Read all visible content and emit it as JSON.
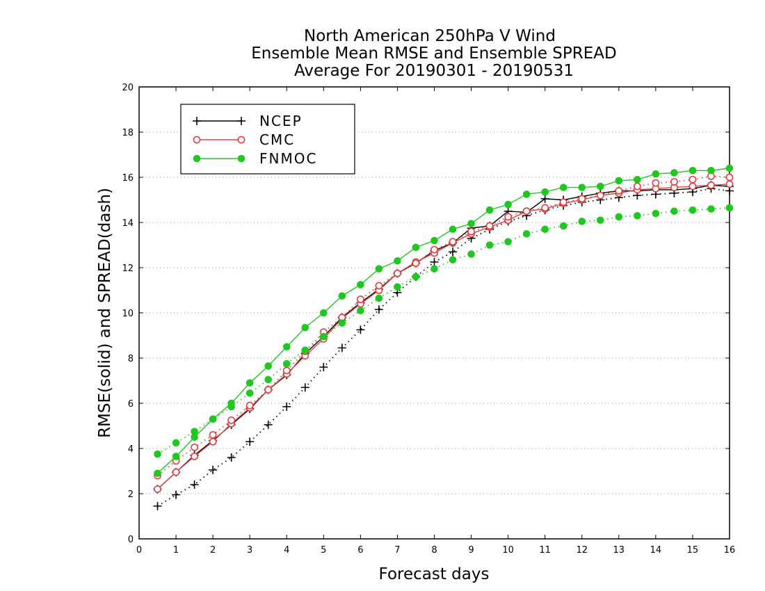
{
  "chart_data": {
    "type": "line",
    "title": [
      "North American 250hPa V Wind",
      "Ensemble Mean RMSE and Ensemble SPREAD",
      "Average For 20190301 - 20190531"
    ],
    "xlabel": "Forecast days",
    "ylabel": "RMSE(solid) and SPREAD(dash)",
    "xlim": [
      0,
      16
    ],
    "ylim": [
      0,
      20
    ],
    "xticks": [
      "0",
      "1",
      "2",
      "3",
      "4",
      "5",
      "6",
      "7",
      "8",
      "9",
      "10",
      "11",
      "12",
      "13",
      "14",
      "15",
      "16"
    ],
    "yticks": [
      "0",
      "2",
      "4",
      "6",
      "8",
      "10",
      "12",
      "14",
      "16",
      "18",
      "20"
    ],
    "grid": "dotted horizontal",
    "legend_position": "top-left",
    "x": [
      0.5,
      1,
      1.5,
      2,
      2.5,
      3,
      3.5,
      4,
      4.5,
      5,
      5.5,
      6,
      6.5,
      7,
      7.5,
      8,
      8.5,
      9,
      9.5,
      10,
      10.5,
      11,
      11.5,
      12,
      12.5,
      13,
      13.5,
      14,
      14.5,
      15,
      15.5,
      16
    ],
    "series": [
      {
        "name": "NCEP",
        "kind": "rmse",
        "style": "solid",
        "color": "#000000",
        "marker": "plus",
        "values": [
          2.2,
          2.95,
          3.7,
          4.35,
          5.05,
          5.75,
          6.6,
          7.25,
          8.2,
          8.95,
          9.8,
          10.45,
          11.05,
          11.75,
          12.2,
          12.75,
          13.1,
          13.75,
          13.85,
          14.5,
          14.45,
          15.05,
          15.0,
          15.15,
          15.3,
          15.4,
          15.4,
          15.45,
          15.45,
          15.5,
          15.65,
          15.6
        ]
      },
      {
        "name": "NCEP",
        "kind": "spread",
        "style": "dotted",
        "color": "#000000",
        "marker": "plus",
        "values": [
          1.45,
          1.95,
          2.4,
          3.05,
          3.6,
          4.3,
          5.05,
          5.85,
          6.7,
          7.6,
          8.45,
          9.25,
          10.15,
          10.9,
          11.6,
          12.25,
          12.7,
          13.3,
          13.7,
          14.05,
          14.3,
          14.55,
          14.75,
          14.9,
          15.0,
          15.1,
          15.2,
          15.25,
          15.3,
          15.35,
          15.5,
          15.4
        ]
      },
      {
        "name": "CMC",
        "kind": "rmse",
        "style": "solid",
        "color": "#e24040",
        "marker": "open-circle",
        "values": [
          2.2,
          2.95,
          3.65,
          4.3,
          5.1,
          5.8,
          6.6,
          7.3,
          8.1,
          8.85,
          9.75,
          10.4,
          11.0,
          11.75,
          12.25,
          12.65,
          13.1,
          13.5,
          13.8,
          14.1,
          14.5,
          14.6,
          14.85,
          15.0,
          15.2,
          15.3,
          15.45,
          15.5,
          15.55,
          15.6,
          15.65,
          15.7
        ]
      },
      {
        "name": "CMC",
        "kind": "spread",
        "style": "dotted",
        "color": "#e24040",
        "marker": "open-circle",
        "values": [
          2.8,
          3.45,
          4.05,
          4.6,
          5.25,
          5.9,
          6.6,
          7.45,
          8.3,
          9.15,
          9.8,
          10.6,
          11.2,
          11.75,
          12.2,
          12.8,
          13.15,
          13.6,
          13.85,
          14.25,
          14.5,
          14.65,
          14.9,
          15.05,
          15.2,
          15.4,
          15.6,
          15.75,
          15.8,
          15.9,
          16.05,
          16.0
        ]
      },
      {
        "name": "FNMOC",
        "kind": "rmse",
        "style": "solid",
        "color": "#1ec81e",
        "marker": "filled-circle",
        "values": [
          2.9,
          3.65,
          4.5,
          5.3,
          6.0,
          6.9,
          7.65,
          8.5,
          9.35,
          10.0,
          10.75,
          11.25,
          11.95,
          12.3,
          12.9,
          13.2,
          13.7,
          13.95,
          14.55,
          14.8,
          15.25,
          15.35,
          15.55,
          15.55,
          15.6,
          15.85,
          15.9,
          16.15,
          16.2,
          16.3,
          16.3,
          16.4
        ]
      },
      {
        "name": "FNMOC",
        "kind": "spread",
        "style": "dotted",
        "color": "#1ec81e",
        "marker": "filled-circle",
        "values": [
          3.75,
          4.25,
          4.75,
          5.3,
          5.85,
          6.45,
          7.05,
          7.75,
          8.35,
          8.95,
          9.55,
          10.1,
          10.65,
          11.15,
          11.6,
          11.95,
          12.35,
          12.6,
          13.0,
          13.15,
          13.5,
          13.7,
          13.85,
          14.05,
          14.1,
          14.25,
          14.3,
          14.4,
          14.5,
          14.55,
          14.6,
          14.65
        ]
      }
    ],
    "legend": [
      {
        "label": "NCEP",
        "color": "#000000",
        "marker": "plus"
      },
      {
        "label": "CMC",
        "color": "#e24040",
        "marker": "open-circle"
      },
      {
        "label": "FNMOC",
        "color": "#1ec81e",
        "marker": "filled-circle"
      }
    ]
  }
}
